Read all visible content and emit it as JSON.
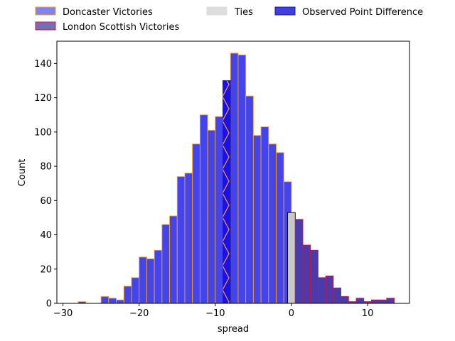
{
  "chart_data": {
    "type": "bar",
    "xlabel": "spread",
    "ylabel": "Count",
    "xlim": [
      -30.8,
      15.5
    ],
    "ylim": [
      0,
      153
    ],
    "x_ticks": [
      -30,
      -20,
      -10,
      0,
      10
    ],
    "x_tick_labels": [
      "−30",
      "−20",
      "−10",
      "0",
      "10"
    ],
    "y_ticks": [
      0,
      20,
      40,
      60,
      80,
      100,
      120,
      140
    ],
    "y_tick_labels": [
      "0",
      "20",
      "40",
      "60",
      "80",
      "100",
      "120",
      "140"
    ],
    "bin_width": 1,
    "legend": {
      "placement": "top, above axes",
      "entries": [
        {
          "label": "Doncaster Victories",
          "fill": "#8080f8",
          "edge": "#ffa500"
        },
        {
          "label": "London Scottish Victories",
          "fill": "#7070b8",
          "edge": "#e01030"
        },
        {
          "label": "Ties",
          "fill": "#dddddd",
          "edge": "#dddddd"
        },
        {
          "label": "Observed Point Difference",
          "fill": "#4040e0",
          "edge": "#1a1aa0"
        }
      ]
    },
    "series": [
      {
        "name": "Doncaster Victories",
        "color": "#4444ee",
        "edge": "#ffa500",
        "bins_start": [
          -29,
          -28,
          -27,
          -26,
          -25,
          -24,
          -23,
          -22,
          -21,
          -20,
          -19,
          -18,
          -17,
          -16,
          -15,
          -14,
          -13,
          -12,
          -11,
          -10,
          -9,
          -8,
          -7,
          -6,
          -5,
          -4,
          -3,
          -2,
          -1
        ],
        "values": [
          0,
          1,
          0,
          0,
          4,
          3,
          2,
          10,
          15,
          27,
          26,
          31,
          46,
          51,
          74,
          76,
          93,
          110,
          101,
          109,
          130,
          146,
          145,
          121,
          98,
          103,
          93,
          88,
          71
        ]
      },
      {
        "name": "Ties",
        "color": "#c8c8c8",
        "edge": "#000000",
        "bins_start": [
          -0.5
        ],
        "values": [
          53
        ]
      },
      {
        "name": "London Scottish Victories",
        "color": "#4a3aaa",
        "edge": "#e01030",
        "bins_start": [
          0.5,
          1.5,
          2.5,
          3.5,
          4.5,
          5.5,
          6.5,
          7.5,
          8.5,
          9.5,
          10.5,
          11.5,
          12.5
        ],
        "values": [
          49,
          34,
          31,
          15,
          16,
          9,
          4,
          1,
          3,
          1,
          2,
          2,
          3
        ]
      }
    ],
    "observed": {
      "name": "Observed Point Difference",
      "bin_start": -9,
      "value": 130,
      "color": "#1a10ee",
      "hatch": "#ffa500"
    }
  }
}
